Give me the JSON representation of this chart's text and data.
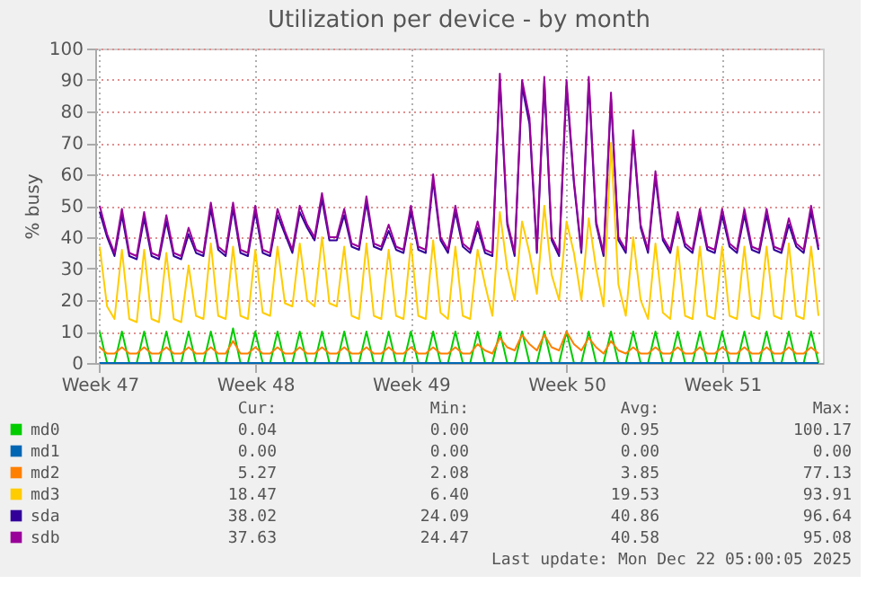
{
  "chart_data": {
    "type": "line",
    "title": "Utilization per device - by month",
    "ylabel": "% busy",
    "legend": "bottom",
    "grid": true,
    "categories": [
      "Week 47",
      null,
      null,
      null,
      null,
      null,
      null,
      null,
      null,
      null,
      null,
      null,
      null,
      null,
      null,
      null,
      null,
      null,
      null,
      null,
      null,
      "Week 48",
      null,
      null,
      null,
      null,
      null,
      null,
      null,
      null,
      null,
      null,
      null,
      null,
      null,
      null,
      null,
      null,
      null,
      null,
      null,
      null,
      "Week 49",
      null,
      null,
      null,
      null,
      null,
      null,
      null,
      null,
      null,
      null,
      null,
      null,
      null,
      null,
      null,
      null,
      null,
      null,
      null,
      null,
      "Week 50",
      null,
      null,
      null,
      null,
      null,
      null,
      null,
      null,
      null,
      null,
      null,
      null,
      null,
      null,
      null,
      null,
      null,
      null,
      null,
      null,
      "Week 51",
      null,
      null,
      null,
      null,
      null,
      null,
      null,
      null,
      null,
      null,
      null,
      null,
      null
    ],
    "ylim": [
      0,
      100
    ],
    "yticks": [
      0,
      10,
      20,
      30,
      40,
      50,
      60,
      70,
      80,
      90,
      100
    ],
    "series": [
      {
        "name": "md0",
        "color": "#00cc00",
        "values": [
          10,
          0,
          0,
          10,
          0,
          0,
          10,
          0,
          0,
          10,
          0,
          0,
          10,
          0,
          0,
          10,
          0,
          0,
          11,
          0,
          0,
          10,
          0,
          0,
          10,
          0,
          0,
          10,
          0,
          0,
          10,
          0,
          0,
          10,
          0,
          0,
          10,
          0,
          0,
          10,
          0,
          0,
          10,
          0,
          0,
          10,
          0,
          0,
          10,
          0,
          0,
          10,
          0,
          0,
          10,
          0,
          0,
          10,
          0,
          0,
          10,
          0,
          0,
          10,
          0,
          0,
          10,
          0,
          0,
          10,
          0,
          0,
          10,
          0,
          0,
          10,
          0,
          0,
          10,
          0,
          0,
          10,
          0,
          0,
          10,
          0,
          0,
          10,
          0,
          0,
          10,
          0,
          0,
          10,
          0,
          0,
          10,
          0
        ]
      },
      {
        "name": "md1",
        "color": "#0066b3",
        "values": [
          0,
          0,
          0,
          0,
          0,
          0,
          0,
          0,
          0,
          0,
          0,
          0,
          0,
          0,
          0,
          0,
          0,
          0,
          0,
          0,
          0,
          0,
          0,
          0,
          0,
          0,
          0,
          0,
          0,
          0,
          0,
          0,
          0,
          0,
          0,
          0,
          0,
          0,
          0,
          0,
          0,
          0,
          0,
          0,
          0,
          0,
          0,
          0,
          0,
          0,
          0,
          0,
          0,
          0,
          0,
          0,
          0,
          0,
          0,
          0,
          0,
          0,
          0,
          0,
          0,
          0,
          0,
          0,
          0,
          0,
          0,
          0,
          0,
          0,
          0,
          0,
          0,
          0,
          0,
          0,
          0,
          0,
          0,
          0,
          0,
          0,
          0,
          0,
          0,
          0,
          0,
          0,
          0,
          0,
          0,
          0,
          0,
          0
        ]
      },
      {
        "name": "md2",
        "color": "#ff8000",
        "values": [
          5,
          3,
          3,
          5,
          3,
          3,
          5,
          3,
          3,
          5,
          3,
          3,
          5,
          3,
          3,
          5,
          3,
          3,
          7,
          3,
          3,
          5,
          3,
          3,
          5,
          3,
          3,
          5,
          3,
          3,
          5,
          3,
          3,
          5,
          3,
          3,
          5,
          3,
          3,
          5,
          3,
          3,
          5,
          3,
          3,
          5,
          3,
          3,
          5,
          3,
          3,
          6,
          4,
          3,
          8,
          5,
          4,
          9,
          6,
          4,
          9,
          5,
          4,
          10,
          6,
          4,
          8,
          5,
          3,
          7,
          4,
          3,
          5,
          3,
          3,
          5,
          3,
          3,
          5,
          3,
          3,
          5,
          3,
          3,
          5,
          3,
          3,
          5,
          3,
          3,
          5,
          3,
          3,
          5,
          3,
          3,
          5,
          3
        ]
      },
      {
        "name": "md3",
        "color": "#ffcc00",
        "values": [
          37,
          18,
          14,
          36,
          14,
          13,
          36,
          14,
          13,
          35,
          14,
          13,
          31,
          15,
          14,
          38,
          15,
          14,
          37,
          15,
          14,
          36,
          16,
          15,
          37,
          19,
          18,
          38,
          20,
          18,
          40,
          19,
          18,
          37,
          15,
          14,
          38,
          15,
          14,
          36,
          15,
          14,
          38,
          15,
          14,
          39,
          16,
          14,
          37,
          15,
          14,
          36,
          25,
          15,
          48,
          30,
          20,
          45,
          35,
          22,
          50,
          28,
          20,
          45,
          35,
          20,
          46,
          30,
          18,
          70,
          25,
          15,
          40,
          20,
          14,
          38,
          16,
          14,
          37,
          15,
          14,
          37,
          15,
          14,
          37,
          15,
          14,
          37,
          15,
          14,
          37,
          15,
          14,
          38,
          15,
          14,
          37,
          15
        ]
      },
      {
        "name": "sda",
        "color": "#330099",
        "values": [
          48,
          40,
          34,
          47,
          34,
          33,
          46,
          34,
          33,
          45,
          34,
          33,
          41,
          35,
          34,
          49,
          36,
          34,
          49,
          35,
          34,
          48,
          35,
          34,
          47,
          41,
          35,
          48,
          43,
          39,
          52,
          39,
          39,
          47,
          37,
          36,
          51,
          37,
          36,
          42,
          36,
          35,
          48,
          36,
          35,
          58,
          39,
          35,
          48,
          37,
          35,
          43,
          35,
          34,
          90,
          44,
          34,
          88,
          76,
          35,
          89,
          39,
          34,
          88,
          57,
          35,
          89,
          44,
          34,
          84,
          39,
          35,
          72,
          43,
          35,
          59,
          39,
          35,
          46,
          37,
          35,
          47,
          36,
          35,
          47,
          37,
          35,
          47,
          36,
          35,
          47,
          36,
          35,
          44,
          37,
          35,
          48,
          36
        ]
      },
      {
        "name": "sdb",
        "color": "#990099",
        "values": [
          50,
          41,
          35,
          49,
          35,
          34,
          48,
          35,
          34,
          47,
          35,
          34,
          43,
          36,
          35,
          51,
          37,
          35,
          51,
          36,
          35,
          50,
          36,
          35,
          49,
          42,
          36,
          50,
          44,
          40,
          54,
          40,
          40,
          49,
          38,
          37,
          53,
          38,
          37,
          44,
          37,
          36,
          50,
          37,
          36,
          60,
          40,
          36,
          50,
          38,
          36,
          45,
          36,
          35,
          92,
          45,
          35,
          90,
          78,
          36,
          91,
          40,
          35,
          90,
          58,
          36,
          91,
          45,
          35,
          86,
          40,
          36,
          74,
          44,
          36,
          61,
          40,
          36,
          48,
          38,
          36,
          49,
          37,
          36,
          49,
          38,
          36,
          49,
          37,
          36,
          49,
          37,
          36,
          46,
          38,
          36,
          50,
          37
        ]
      }
    ],
    "annotations": [
      "Cur:",
      "Min:",
      "Avg:",
      "Max:",
      "0.04",
      "0.00",
      "0.95",
      "100.17",
      "0.00",
      "0.00",
      "0.00",
      "0.00",
      "5.27",
      "2.08",
      "3.85",
      "77.13",
      "18.47",
      "6.40",
      "19.53",
      "93.91",
      "38.02",
      "24.09",
      "40.86",
      "96.64",
      "37.63",
      "24.47",
      "40.58",
      "95.08",
      "Last update: Mon Dec 22 05:00:05 2025"
    ]
  }
}
